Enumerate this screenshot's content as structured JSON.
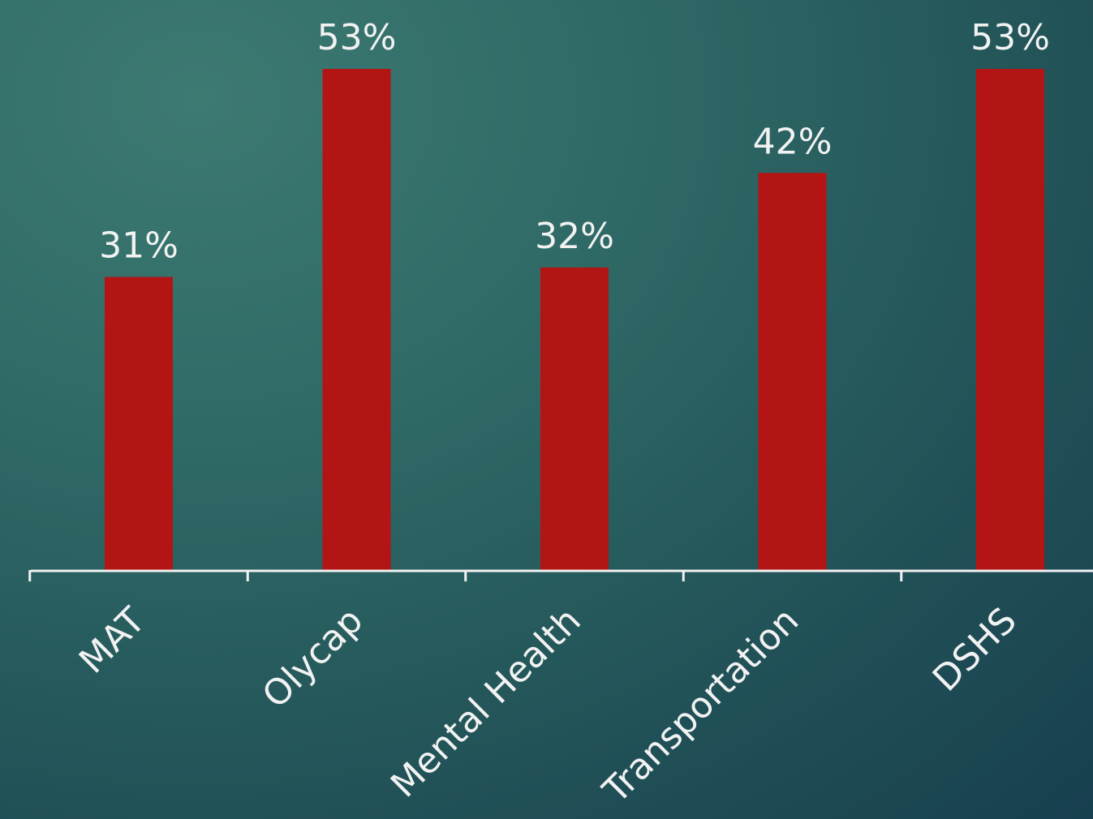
{
  "chart_data": {
    "type": "bar",
    "categories": [
      "MAT",
      "Olycap",
      "Mental Health",
      "Transportation",
      "DSHS"
    ],
    "values": [
      31,
      53,
      32,
      42,
      53
    ],
    "data_labels": [
      "31%",
      "53%",
      "32%",
      "42%",
      "53%"
    ],
    "title": "",
    "xlabel": "",
    "ylabel": "",
    "ylim": [
      0,
      53
    ],
    "grid": false,
    "legend": "none",
    "bar_color": "#b31414",
    "label_color": "#f2f2f2",
    "axis_color": "#f2f2f2"
  }
}
